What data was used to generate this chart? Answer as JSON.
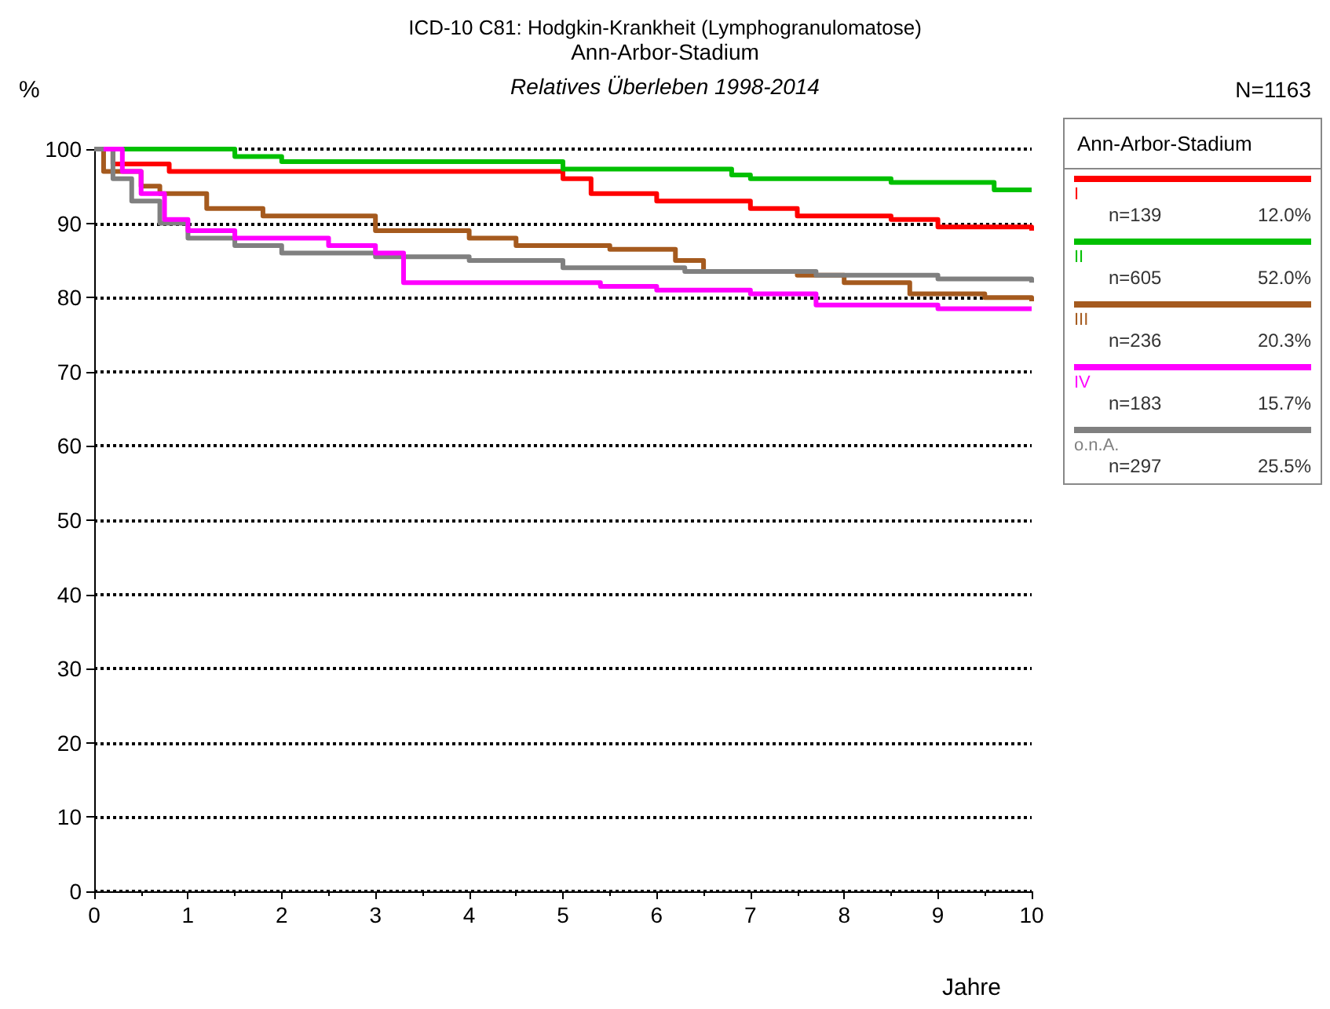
{
  "chart_data": {
    "type": "step",
    "title": "ICD-10 C81: Hodgkin-Krankheit (Lymphogranulomatose)",
    "subtitle": "Ann-Arbor-Stadium",
    "xlabel": "Jahre",
    "ylabel": "%",
    "legend_title": "Ann-Arbor-Stadium",
    "annotations": [
      "Relatives Überleben 1998-2014",
      "N=1163",
      "n=139",
      "12.0%",
      "n=605",
      "52.0%",
      "n=236",
      "20.3%",
      "n=183",
      "15.7%",
      "n=297",
      "25.5%"
    ],
    "xlim": [
      0,
      10
    ],
    "xticks": [
      0,
      1,
      2,
      3,
      4,
      5,
      6,
      7,
      8,
      9,
      10
    ],
    "ylim": [
      0,
      100
    ],
    "yticks": [
      0,
      10,
      20,
      30,
      40,
      50,
      60,
      70,
      80,
      90,
      100
    ],
    "grid": "y",
    "legend": "right",
    "marker": "none",
    "line_style": "solid",
    "series": [
      {
        "name": "I",
        "color": "#ff0000",
        "x": [
          0,
          0.2,
          0.8,
          5,
          5.3,
          6,
          7,
          7.5,
          8.5,
          9,
          10
        ],
        "values": [
          100,
          98,
          97,
          96,
          94,
          93,
          92,
          91,
          90.5,
          89.5,
          89
        ]
      },
      {
        "name": "II",
        "color": "#00c000",
        "x": [
          0,
          1.5,
          2,
          5,
          6.8,
          7,
          8.5,
          9.6,
          10
        ],
        "values": [
          100,
          99,
          98.3,
          97.3,
          96.5,
          96,
          95.5,
          94.5,
          94.5
        ]
      },
      {
        "name": "III",
        "color": "#a55a1e",
        "x": [
          0,
          0.1,
          0.5,
          0.7,
          1.2,
          1.8,
          3,
          4,
          4.5,
          5.5,
          6.2,
          6.5,
          7.5,
          8,
          8.7,
          9.5,
          10
        ],
        "values": [
          100,
          97,
          95,
          94,
          92,
          91,
          89,
          88,
          87,
          86.5,
          85,
          83.5,
          83,
          82,
          80.5,
          80,
          79.5
        ]
      },
      {
        "name": "IV",
        "color": "#ff00ff",
        "x": [
          0.1,
          0.3,
          0.5,
          0.75,
          1,
          1.5,
          2.5,
          3,
          3.3,
          5.4,
          6,
          7,
          7.7,
          9,
          10
        ],
        "values": [
          100,
          97,
          94,
          90.5,
          89,
          88,
          87,
          86,
          82,
          81.5,
          81,
          80.5,
          79,
          78.5,
          78.5
        ]
      },
      {
        "name": "o.n.A.",
        "color": "#808080",
        "x": [
          0,
          0.2,
          0.4,
          0.7,
          1,
          1.5,
          2,
          3,
          4,
          5,
          6.3,
          7.7,
          9,
          10
        ],
        "values": [
          100,
          96,
          93,
          90,
          88,
          87,
          86,
          85.5,
          85,
          84,
          83.5,
          83,
          82.5,
          82
        ]
      }
    ]
  }
}
